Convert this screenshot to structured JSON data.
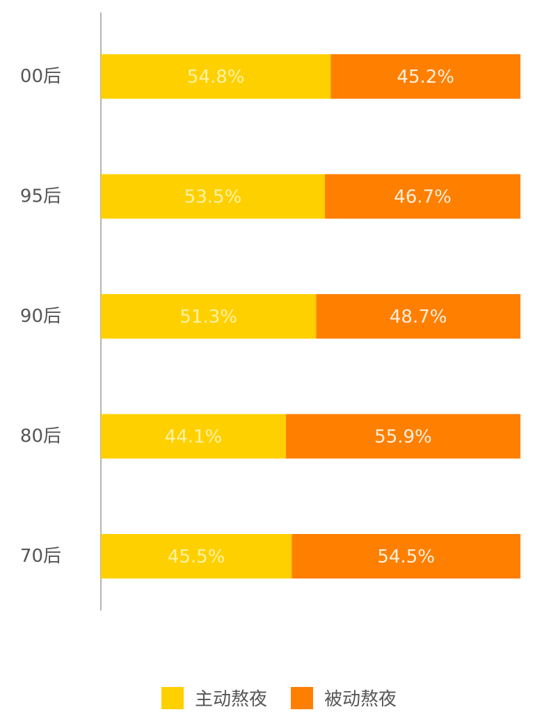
{
  "chart_data": {
    "type": "bar",
    "orientation": "horizontal",
    "stacked": true,
    "categories": [
      "00后",
      "95后",
      "90后",
      "80后",
      "70后"
    ],
    "series": [
      {
        "name": "主动熬夜",
        "color": "#FFD000",
        "label_color": "#FFF3A8",
        "values": [
          54.8,
          53.5,
          51.3,
          44.1,
          45.5
        ],
        "labels": [
          "54.8%",
          "53.5%",
          "51.3%",
          "44.1%",
          "45.5%"
        ]
      },
      {
        "name": "被动熬夜",
        "color": "#FF7F00",
        "label_color": "#FFF1E0",
        "values": [
          45.2,
          46.7,
          48.7,
          55.9,
          54.5
        ],
        "labels": [
          "45.2%",
          "46.7%",
          "48.7%",
          "55.9%",
          "54.5%"
        ]
      }
    ],
    "title": "",
    "xlabel": "",
    "ylabel": "",
    "grid": false,
    "legend_position": "bottom-center"
  },
  "colors": {
    "axis": "#9a9a9a",
    "category_text": "#555555"
  }
}
